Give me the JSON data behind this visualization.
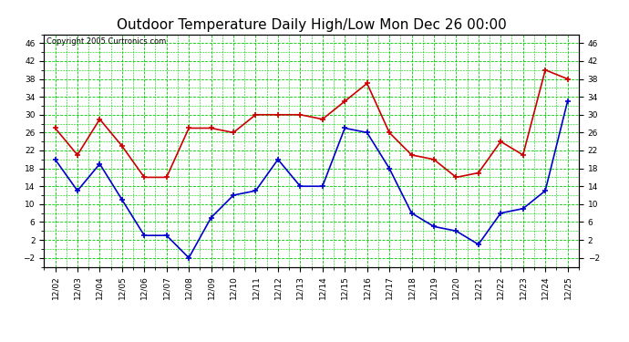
{
  "title": "Outdoor Temperature Daily High/Low Mon Dec 26 00:00",
  "copyright": "Copyright 2005 Curtronics.com",
  "dates": [
    "12/02",
    "12/03",
    "12/04",
    "12/05",
    "12/06",
    "12/07",
    "12/08",
    "12/09",
    "12/10",
    "12/11",
    "12/12",
    "12/13",
    "12/14",
    "12/15",
    "12/16",
    "12/17",
    "12/18",
    "12/19",
    "12/20",
    "12/21",
    "12/22",
    "12/23",
    "12/24",
    "12/25"
  ],
  "high_temps": [
    27,
    21,
    29,
    23,
    16,
    16,
    27,
    27,
    26,
    30,
    30,
    30,
    29,
    33,
    37,
    26,
    21,
    20,
    16,
    17,
    24,
    21,
    40,
    38
  ],
  "low_temps": [
    20,
    13,
    19,
    11,
    3,
    3,
    -2,
    7,
    12,
    13,
    20,
    14,
    14,
    27,
    26,
    18,
    8,
    5,
    4,
    1,
    8,
    9,
    13,
    33
  ],
  "ylim": [
    -4,
    48
  ],
  "yticks": [
    -2,
    2,
    6,
    10,
    14,
    18,
    22,
    26,
    30,
    34,
    38,
    42,
    46
  ],
  "high_color": "#cc0000",
  "low_color": "#0000cc",
  "bg_color": "#ffffff",
  "plot_bg_color": "#ffffff",
  "grid_color": "#00cc00",
  "title_fontsize": 11,
  "marker": "s",
  "marker_size": 3,
  "line_width": 1.2
}
